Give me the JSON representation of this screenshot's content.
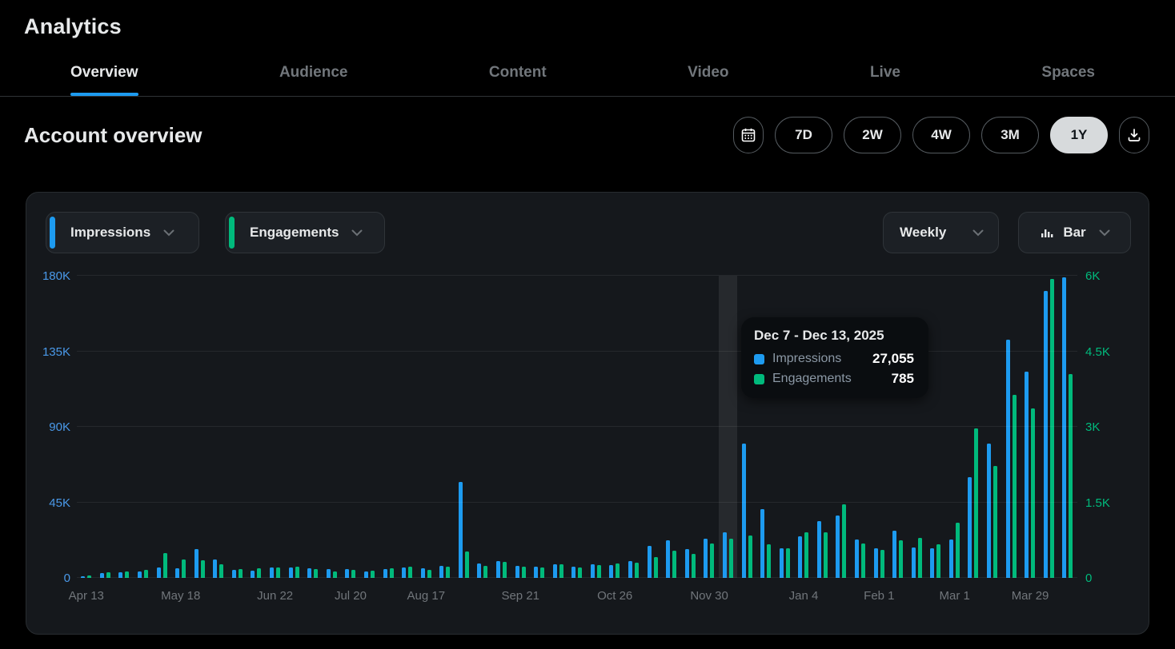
{
  "header": {
    "title": "Analytics"
  },
  "tabs": [
    {
      "label": "Overview",
      "active": true
    },
    {
      "label": "Audience",
      "active": false
    },
    {
      "label": "Content",
      "active": false
    },
    {
      "label": "Video",
      "active": false
    },
    {
      "label": "Live",
      "active": false
    },
    {
      "label": "Spaces",
      "active": false
    }
  ],
  "account_overview": {
    "title": "Account overview",
    "range_buttons": [
      "7D",
      "2W",
      "4W",
      "3M",
      "1Y"
    ],
    "active_range": "1Y",
    "icons": {
      "date_range": "calendar-icon",
      "export": "download-icon"
    }
  },
  "chart_controls": {
    "metric1": {
      "label": "Impressions",
      "color": "#1d9bf0"
    },
    "metric2": {
      "label": "Engagements",
      "color": "#00ba7c"
    },
    "interval": "Weekly",
    "chart_type": "Bar",
    "icons": {
      "chart_type": "bar-chart-icon",
      "dropdown": "chevron-down-icon"
    }
  },
  "tooltip": {
    "title": "Dec 7 - Dec 13, 2025",
    "rows": [
      {
        "label": "Impressions",
        "value": "27,055",
        "color": "#1d9bf0"
      },
      {
        "label": "Engagements",
        "value": "785",
        "color": "#00ba7c"
      }
    ]
  },
  "chart_data": {
    "type": "bar",
    "interval": "weekly",
    "weeks": 53,
    "highlighted_index": 34,
    "left_axis": {
      "label": "Impressions",
      "ticks": [
        "0",
        "45K",
        "90K",
        "135K",
        "180K"
      ],
      "max": 180000,
      "color": "#4a99e9"
    },
    "right_axis": {
      "label": "Engagements",
      "ticks": [
        "0",
        "1.5K",
        "3K",
        "4.5K",
        "6K"
      ],
      "max": 6000,
      "color": "#00ba7c"
    },
    "x_tick_labels": [
      {
        "index": 0,
        "label": "Apr 13"
      },
      {
        "index": 5,
        "label": "May 18"
      },
      {
        "index": 10,
        "label": "Jun 22"
      },
      {
        "index": 14,
        "label": "Jul 20"
      },
      {
        "index": 18,
        "label": "Aug 17"
      },
      {
        "index": 23,
        "label": "Sep 21"
      },
      {
        "index": 28,
        "label": "Oct 26"
      },
      {
        "index": 33,
        "label": "Nov 30"
      },
      {
        "index": 38,
        "label": "Jan 4"
      },
      {
        "index": 42,
        "label": "Feb 1"
      },
      {
        "index": 46,
        "label": "Mar 1"
      },
      {
        "index": 50,
        "label": "Mar 29"
      }
    ],
    "series": [
      {
        "name": "Impressions",
        "axis": "left",
        "color": "#1d9bf0",
        "values": [
          1000,
          3000,
          3300,
          4000,
          6000,
          5700,
          17000,
          11000,
          4800,
          4300,
          6200,
          6200,
          5600,
          5200,
          5200,
          4000,
          5200,
          6200,
          5600,
          7200,
          57000,
          8700,
          10000,
          7200,
          6700,
          8200,
          6700,
          8000,
          7600,
          10000,
          19000,
          22500,
          17000,
          23500,
          27055,
          80000,
          41000,
          17600,
          25000,
          34000,
          37000,
          23000,
          17600,
          28000,
          18000,
          17600,
          23000,
          60000,
          80000,
          142000,
          123000,
          171000,
          179000
        ]
      },
      {
        "name": "Engagements",
        "axis": "right",
        "color": "#00ba7c",
        "values": [
          40,
          110,
          130,
          160,
          490,
          365,
          350,
          270,
          175,
          190,
          210,
          225,
          175,
          130,
          160,
          150,
          190,
          225,
          160,
          220,
          530,
          240,
          320,
          220,
          210,
          270,
          210,
          255,
          290,
          300,
          415,
          540,
          480,
          680,
          785,
          845,
          670,
          590,
          905,
          905,
          1460,
          680,
          560,
          750,
          800,
          670,
          1100,
          2970,
          2230,
          3630,
          3370,
          5930,
          4050
        ]
      }
    ]
  }
}
